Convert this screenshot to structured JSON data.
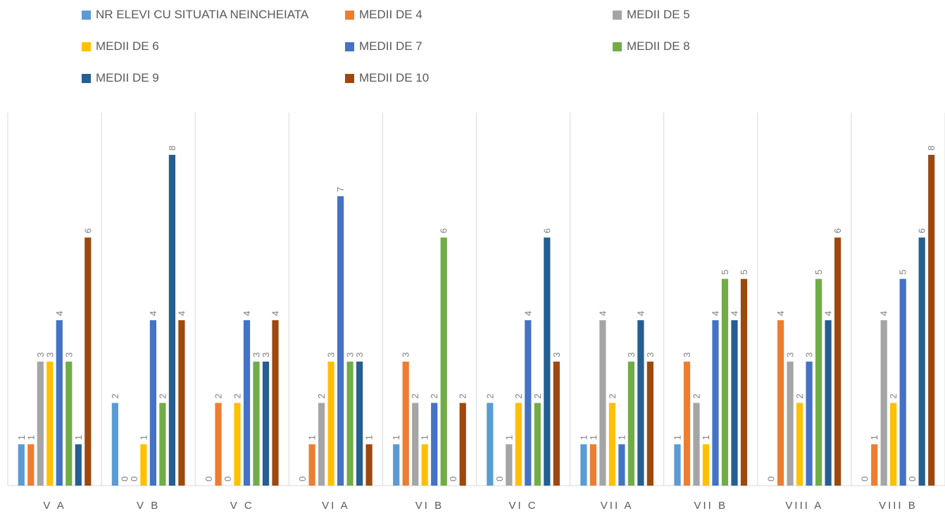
{
  "chart_data": {
    "type": "bar",
    "categories": [
      "V A",
      "V B",
      "V C",
      "VI A",
      "VI B",
      "VI C",
      "VII A",
      "VII B",
      "VIII A",
      "VIII B"
    ],
    "series": [
      {
        "name": "NR ELEVI CU SITUATIA NEINCHEIATA",
        "color": "#5B9BD5",
        "values": [
          1,
          2,
          0,
          0,
          1,
          2,
          1,
          1,
          0,
          0
        ]
      },
      {
        "name": "MEDII DE 4",
        "color": "#ED7D31",
        "values": [
          1,
          0,
          2,
          1,
          3,
          0,
          1,
          3,
          4,
          1
        ]
      },
      {
        "name": "MEDII DE 5",
        "color": "#A5A5A5",
        "values": [
          3,
          0,
          0,
          2,
          2,
          1,
          4,
          2,
          3,
          4
        ]
      },
      {
        "name": "MEDII DE 6",
        "color": "#FFC000",
        "values": [
          3,
          1,
          2,
          3,
          1,
          2,
          2,
          1,
          2,
          2
        ]
      },
      {
        "name": "MEDII DE 7",
        "color": "#4472C4",
        "values": [
          4,
          4,
          4,
          7,
          2,
          4,
          1,
          4,
          3,
          5
        ]
      },
      {
        "name": "MEDII DE 8",
        "color": "#70AD47",
        "values": [
          3,
          2,
          3,
          3,
          6,
          2,
          3,
          5,
          5,
          0
        ]
      },
      {
        "name": "MEDII DE 9",
        "color": "#255E91",
        "values": [
          1,
          8,
          3,
          3,
          0,
          6,
          4,
          4,
          4,
          6
        ]
      },
      {
        "name": "MEDII DE 10",
        "color": "#9E480E",
        "values": [
          6,
          4,
          4,
          1,
          2,
          3,
          3,
          5,
          6,
          8
        ]
      }
    ],
    "ylim": [
      0,
      8
    ],
    "grid": "vertical category separators",
    "legend_position": "top",
    "data_labels": true
  }
}
